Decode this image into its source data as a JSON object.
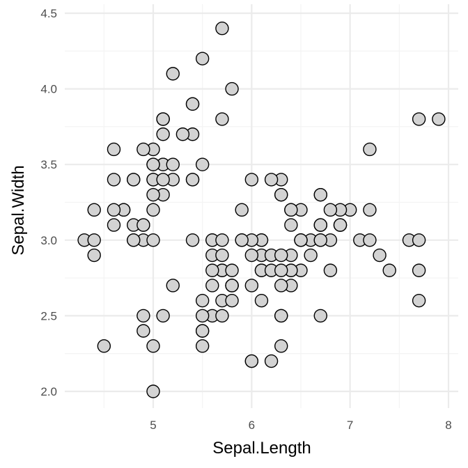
{
  "chart_data": {
    "type": "scatter",
    "title": "",
    "xlabel": "Sepal.Length",
    "ylabel": "Sepal.Width",
    "xlim": [
      4.3,
      7.9
    ],
    "ylim": [
      2.0,
      4.4
    ],
    "x_ticks": [
      5,
      6,
      7,
      8
    ],
    "x_tick_labels": [
      "5",
      "6",
      "7",
      "8"
    ],
    "y_ticks": [
      2.0,
      2.5,
      3.0,
      3.5,
      4.0,
      4.5
    ],
    "y_tick_labels": [
      "2.0",
      "2.5",
      "3.0",
      "3.5",
      "4.0",
      "4.5"
    ],
    "grid": true,
    "legend": "none",
    "colors": {
      "point_fill": "#d3d3d3",
      "point_stroke": "#000000",
      "grid_major": "#ebebeb",
      "grid_minor": "#f4f4f4",
      "tick_text": "#4d4d4d",
      "title_text": "#000000"
    },
    "points": [
      [
        5.1,
        3.5
      ],
      [
        4.9,
        3.0
      ],
      [
        4.7,
        3.2
      ],
      [
        4.6,
        3.1
      ],
      [
        5.0,
        3.6
      ],
      [
        5.4,
        3.9
      ],
      [
        4.6,
        3.4
      ],
      [
        5.0,
        3.4
      ],
      [
        4.4,
        2.9
      ],
      [
        4.9,
        3.1
      ],
      [
        5.4,
        3.7
      ],
      [
        4.8,
        3.4
      ],
      [
        4.8,
        3.0
      ],
      [
        4.3,
        3.0
      ],
      [
        5.8,
        4.0
      ],
      [
        5.7,
        4.4
      ],
      [
        5.4,
        3.9
      ],
      [
        5.1,
        3.5
      ],
      [
        5.7,
        3.8
      ],
      [
        5.1,
        3.8
      ],
      [
        5.4,
        3.4
      ],
      [
        5.1,
        3.7
      ],
      [
        4.6,
        3.6
      ],
      [
        5.1,
        3.3
      ],
      [
        4.8,
        3.4
      ],
      [
        5.0,
        3.0
      ],
      [
        5.0,
        3.4
      ],
      [
        5.2,
        3.5
      ],
      [
        5.2,
        3.4
      ],
      [
        4.7,
        3.2
      ],
      [
        4.8,
        3.1
      ],
      [
        5.4,
        3.4
      ],
      [
        5.2,
        4.1
      ],
      [
        5.5,
        4.2
      ],
      [
        4.9,
        3.1
      ],
      [
        5.0,
        3.2
      ],
      [
        5.5,
        3.5
      ],
      [
        4.9,
        3.6
      ],
      [
        4.4,
        3.0
      ],
      [
        5.1,
        3.4
      ],
      [
        5.0,
        3.5
      ],
      [
        4.5,
        2.3
      ],
      [
        4.4,
        3.2
      ],
      [
        5.0,
        3.5
      ],
      [
        5.1,
        3.8
      ],
      [
        4.8,
        3.0
      ],
      [
        5.1,
        3.8
      ],
      [
        4.6,
        3.2
      ],
      [
        5.3,
        3.7
      ],
      [
        5.0,
        3.3
      ],
      [
        7.0,
        3.2
      ],
      [
        6.4,
        3.2
      ],
      [
        6.9,
        3.1
      ],
      [
        5.5,
        2.3
      ],
      [
        6.5,
        2.8
      ],
      [
        5.7,
        2.8
      ],
      [
        6.3,
        3.3
      ],
      [
        4.9,
        2.4
      ],
      [
        6.6,
        2.9
      ],
      [
        5.2,
        2.7
      ],
      [
        5.0,
        2.0
      ],
      [
        5.9,
        3.0
      ],
      [
        6.0,
        2.2
      ],
      [
        6.1,
        2.9
      ],
      [
        5.6,
        2.9
      ],
      [
        6.7,
        3.1
      ],
      [
        5.6,
        3.0
      ],
      [
        5.8,
        2.7
      ],
      [
        6.2,
        2.2
      ],
      [
        5.6,
        2.5
      ],
      [
        5.9,
        3.2
      ],
      [
        6.1,
        2.8
      ],
      [
        6.3,
        2.5
      ],
      [
        6.1,
        2.8
      ],
      [
        6.4,
        2.9
      ],
      [
        6.6,
        3.0
      ],
      [
        6.8,
        2.8
      ],
      [
        6.7,
        3.0
      ],
      [
        6.0,
        2.9
      ],
      [
        5.7,
        2.6
      ],
      [
        5.5,
        2.4
      ],
      [
        5.5,
        2.4
      ],
      [
        5.8,
        2.7
      ],
      [
        6.0,
        2.7
      ],
      [
        5.4,
        3.0
      ],
      [
        6.0,
        3.4
      ],
      [
        6.7,
        3.1
      ],
      [
        6.3,
        2.3
      ],
      [
        5.6,
        3.0
      ],
      [
        5.5,
        2.5
      ],
      [
        5.5,
        2.6
      ],
      [
        6.1,
        3.0
      ],
      [
        5.8,
        2.6
      ],
      [
        5.0,
        2.3
      ],
      [
        5.6,
        2.7
      ],
      [
        5.7,
        3.0
      ],
      [
        5.7,
        2.9
      ],
      [
        6.2,
        2.9
      ],
      [
        5.1,
        2.5
      ],
      [
        5.7,
        2.8
      ],
      [
        6.3,
        3.3
      ],
      [
        5.8,
        2.7
      ],
      [
        7.1,
        3.0
      ],
      [
        6.3,
        2.9
      ],
      [
        6.5,
        3.0
      ],
      [
        7.6,
        3.0
      ],
      [
        4.9,
        2.5
      ],
      [
        7.3,
        2.9
      ],
      [
        6.7,
        2.5
      ],
      [
        7.2,
        3.6
      ],
      [
        6.5,
        3.2
      ],
      [
        6.4,
        2.7
      ],
      [
        6.8,
        3.0
      ],
      [
        5.7,
        2.5
      ],
      [
        5.8,
        2.8
      ],
      [
        6.4,
        3.2
      ],
      [
        6.5,
        3.0
      ],
      [
        7.7,
        3.8
      ],
      [
        7.7,
        2.6
      ],
      [
        6.0,
        2.2
      ],
      [
        6.9,
        3.2
      ],
      [
        5.6,
        2.8
      ],
      [
        7.7,
        2.8
      ],
      [
        6.3,
        2.7
      ],
      [
        6.7,
        3.3
      ],
      [
        7.2,
        3.2
      ],
      [
        6.2,
        2.8
      ],
      [
        6.1,
        3.0
      ],
      [
        6.4,
        2.8
      ],
      [
        7.2,
        3.0
      ],
      [
        7.4,
        2.8
      ],
      [
        7.9,
        3.8
      ],
      [
        6.4,
        2.8
      ],
      [
        6.3,
        2.8
      ],
      [
        6.1,
        2.6
      ],
      [
        7.7,
        3.0
      ],
      [
        6.3,
        3.4
      ],
      [
        6.4,
        3.1
      ],
      [
        6.0,
        3.0
      ],
      [
        6.9,
        3.1
      ],
      [
        6.7,
        3.1
      ],
      [
        6.9,
        3.1
      ],
      [
        5.8,
        2.7
      ],
      [
        6.8,
        3.2
      ],
      [
        6.7,
        3.3
      ],
      [
        6.7,
        3.0
      ],
      [
        6.3,
        2.5
      ],
      [
        6.5,
        3.0
      ],
      [
        6.2,
        3.4
      ],
      [
        5.9,
        3.0
      ]
    ]
  }
}
